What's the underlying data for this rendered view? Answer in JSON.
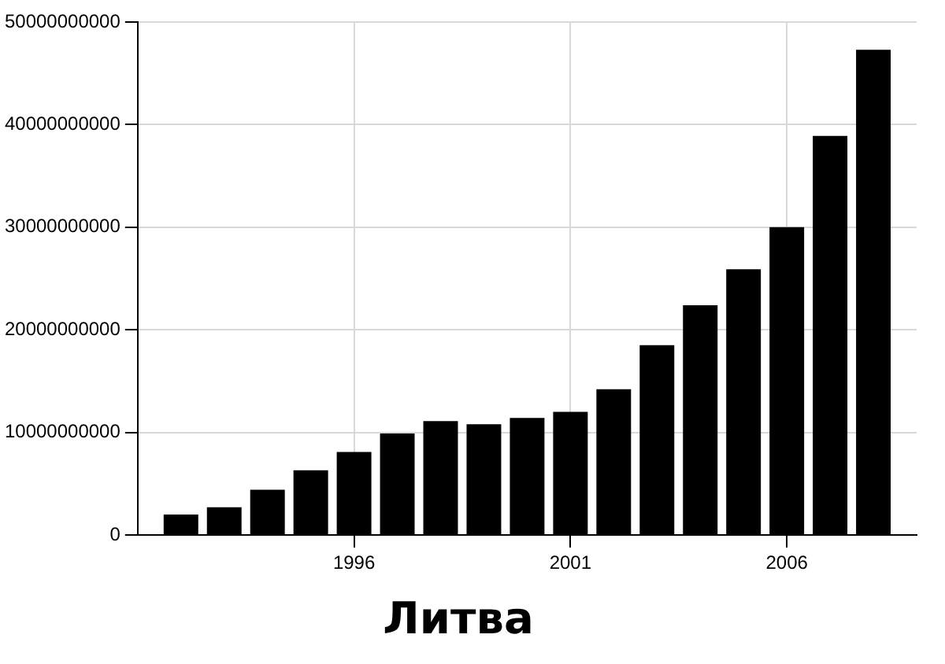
{
  "chart_data": {
    "type": "bar",
    "title": "Литва",
    "x": [
      1992,
      1993,
      1994,
      1995,
      1996,
      1997,
      1998,
      1999,
      2000,
      2001,
      2002,
      2003,
      2004,
      2005,
      2006,
      2007,
      2008
    ],
    "values": [
      2000000000.0,
      2700000000.0,
      4400000000.0,
      6300000000.0,
      8100000000.0,
      9900000000.0,
      11100000000.0,
      10800000000.0,
      11400000000.0,
      12000000000.0,
      14200000000.0,
      18500000000.0,
      22400000000.0,
      25900000000.0,
      30000000000.0,
      38900000000.0,
      47300000000.0
    ],
    "color": "#000000",
    "xlim": [
      1991,
      2009
    ],
    "xticks": [
      1996,
      2001,
      2006
    ],
    "ylim": [
      0,
      50000000000
    ],
    "yticks": [
      0,
      10000000000,
      20000000000,
      30000000000,
      40000000000,
      50000000000
    ],
    "grid": true,
    "legend": false
  }
}
